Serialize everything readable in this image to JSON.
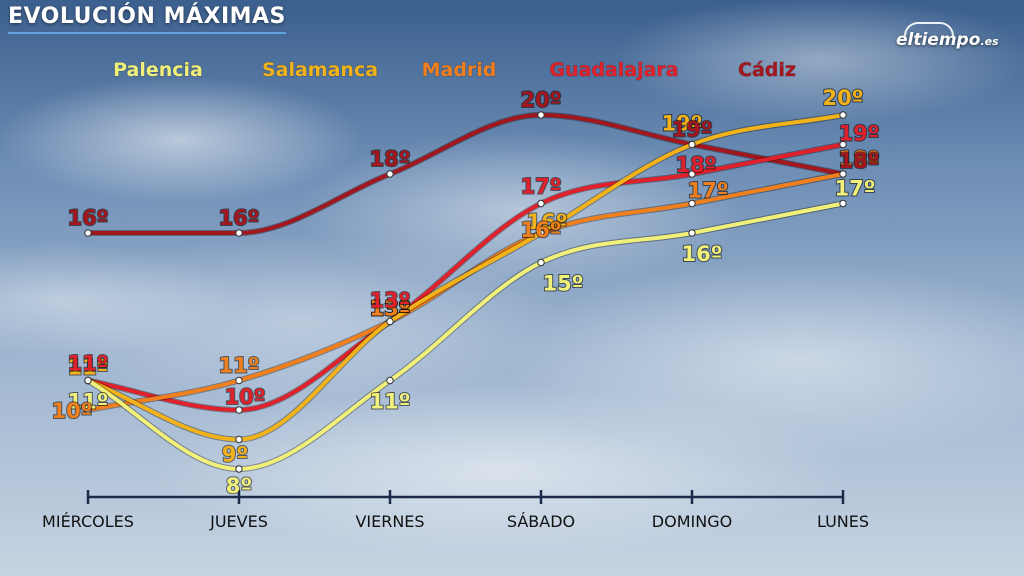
{
  "chart_data": {
    "type": "line",
    "title": "EVOLUCIÓN MÁXIMAS",
    "categories": [
      "MIÉRCOLES",
      "JUEVES",
      "VIERNES",
      "SÁBADO",
      "DOMINGO",
      "LUNES"
    ],
    "unit_suffix": "º",
    "ylim": [
      6,
      22
    ],
    "legend_position": "top",
    "series": [
      {
        "name": "Palencia",
        "color": "#f1f07a",
        "values": [
          11,
          8,
          11,
          15,
          16,
          17
        ]
      },
      {
        "name": "Salamanca",
        "color": "#f2b21a",
        "values": [
          11,
          9,
          13,
          16,
          19,
          20
        ]
      },
      {
        "name": "Madrid",
        "color": "#f07f1e",
        "values": [
          10,
          11,
          13,
          16,
          17,
          18
        ]
      },
      {
        "name": "Guadalajara",
        "color": "#e0202a",
        "values": [
          11,
          10,
          13,
          17,
          18,
          19
        ]
      },
      {
        "name": "Cádiz",
        "color": "#a3161e",
        "values": [
          16,
          16,
          18,
          20,
          19,
          18
        ]
      }
    ]
  },
  "logo": {
    "main": "eltiempo",
    "sub": ".es"
  }
}
